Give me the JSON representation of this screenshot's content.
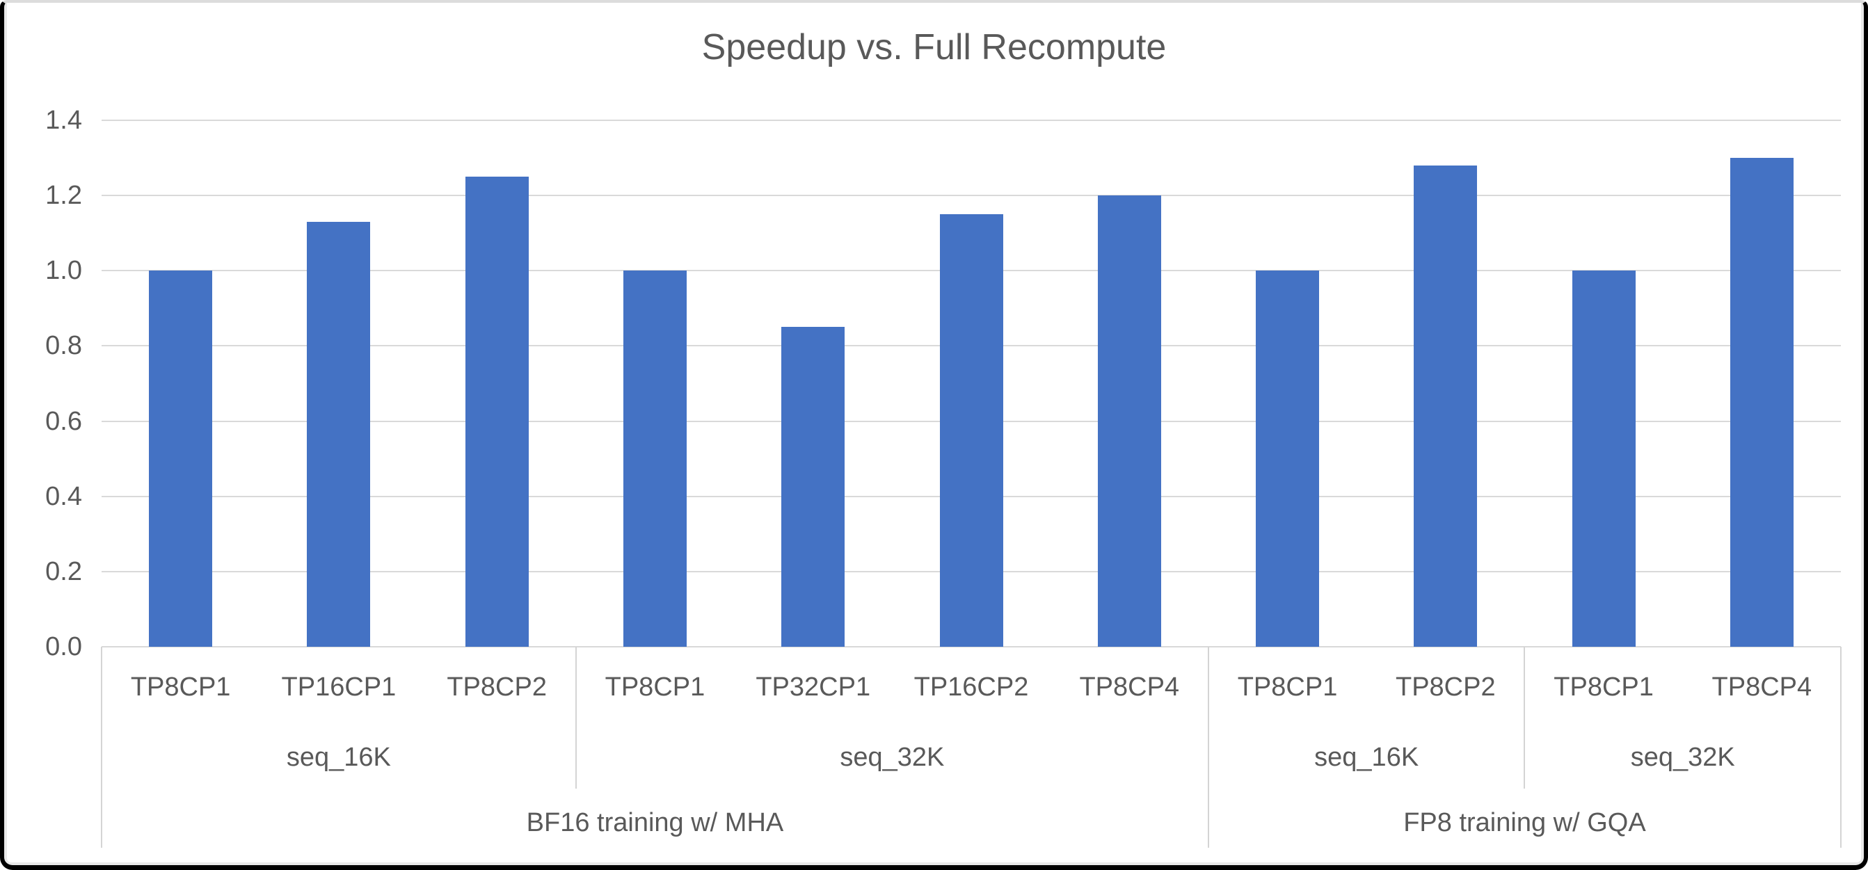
{
  "window": {
    "title": "Speedup vs. Full Recompute"
  },
  "chart_data": {
    "type": "bar",
    "title": "Speedup vs. Full Recompute",
    "xlabel": "",
    "ylabel": "",
    "ylim": [
      0.0,
      1.4
    ],
    "ytick_labels": [
      "0.0",
      "0.2",
      "0.4",
      "0.6",
      "0.8",
      "1.0",
      "1.2",
      "1.4"
    ],
    "grid": true,
    "legend": "none",
    "categories": [
      "TP8CP1",
      "TP16CP1",
      "TP8CP2",
      "TP8CP1",
      "TP32CP1",
      "TP16CP2",
      "TP8CP4",
      "TP8CP1",
      "TP8CP2",
      "TP8CP1",
      "TP8CP4"
    ],
    "values": [
      1.0,
      1.13,
      1.25,
      1.0,
      0.85,
      1.15,
      1.2,
      1.0,
      1.28,
      1.0,
      1.3
    ],
    "group_level_seq": [
      {
        "label": "seq_16K",
        "span": 3
      },
      {
        "label": "seq_32K",
        "span": 4
      },
      {
        "label": "seq_16K",
        "span": 2
      },
      {
        "label": "seq_32K",
        "span": 2
      }
    ],
    "group_level_training": [
      {
        "label": "BF16 training w/ MHA",
        "span": 7
      },
      {
        "label": "FP8 training w/ GQA",
        "span": 4
      }
    ],
    "colors": {
      "bar": "#4472C4",
      "gridline": "#D9D9D9",
      "text": "#595959",
      "frame": "#000000"
    }
  }
}
